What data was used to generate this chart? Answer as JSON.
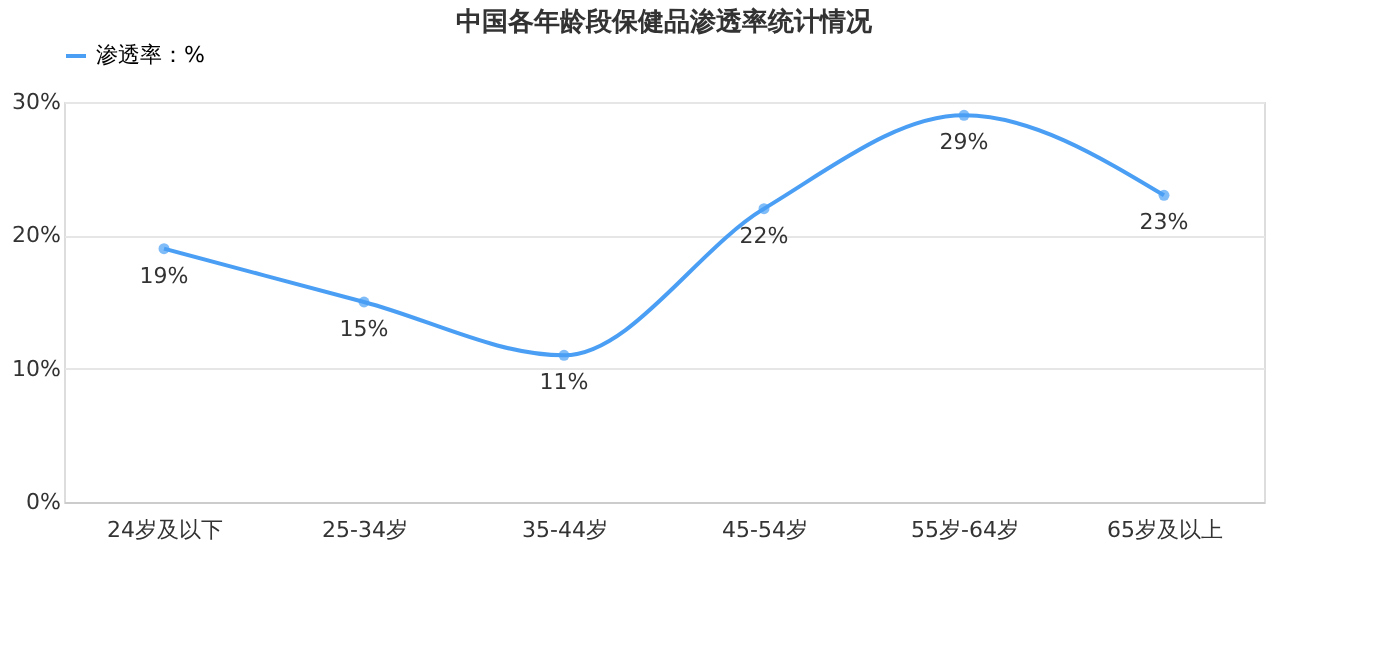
{
  "chart_data": {
    "type": "line",
    "title": "中国各年龄段保健品渗透率统计情况",
    "categories": [
      "24岁及以下",
      "25-34岁",
      "35-44岁",
      "45-54岁",
      "55岁-64岁",
      "65岁及以上"
    ],
    "series": [
      {
        "name": "渗透率：%",
        "color": "#4a9ff5",
        "values": [
          19,
          15,
          11,
          22,
          29,
          23
        ],
        "value_labels": [
          "19%",
          "15%",
          "11%",
          "22%",
          "29%",
          "23%"
        ]
      }
    ],
    "ylim": [
      0,
      30
    ],
    "yticks": [
      {
        "value": 0,
        "label": "0%"
      },
      {
        "value": 10,
        "label": "10%"
      },
      {
        "value": 20,
        "label": "20%"
      },
      {
        "value": 30,
        "label": "30%"
      }
    ],
    "grid": "y",
    "legend": "top",
    "marker": "circle",
    "line_style": "solid"
  }
}
